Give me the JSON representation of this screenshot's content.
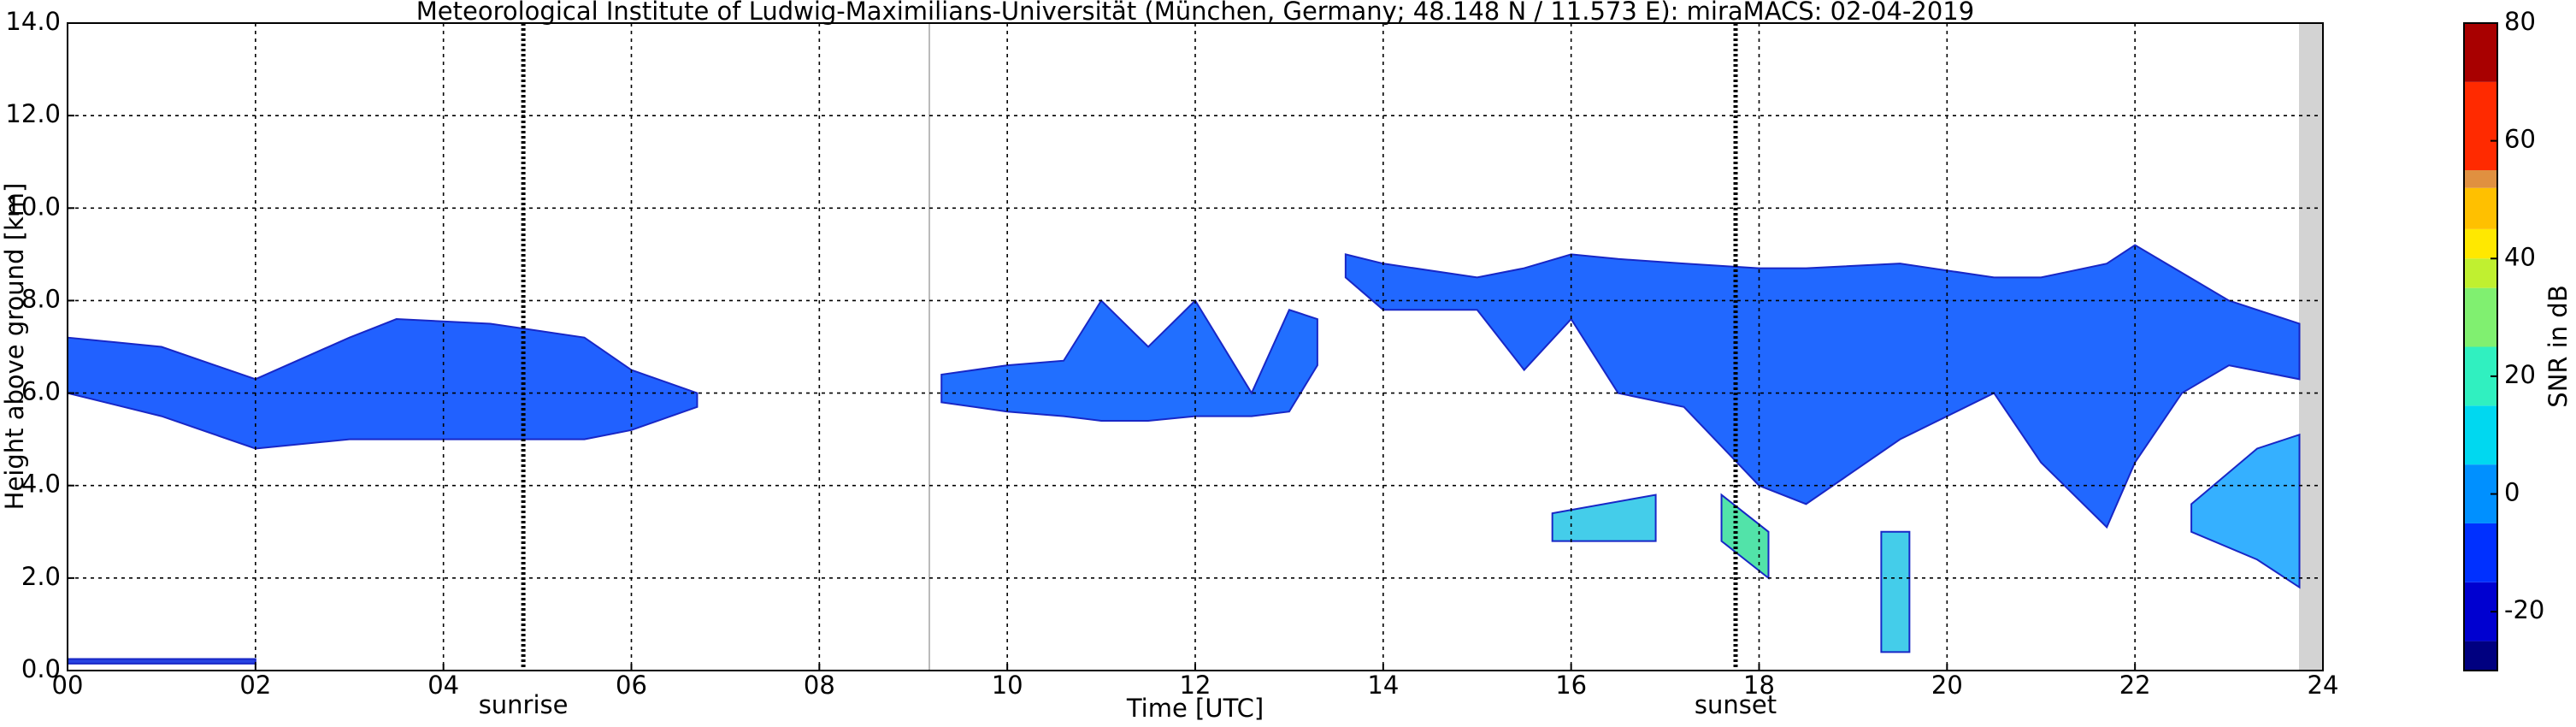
{
  "chart_data": {
    "type": "radar",
    "title": "Meteorological Institute of Ludwig-Maximilians-Universität (München, Germany; 48.148 N / 11.573 E):    miraMACS: 02-04-2019",
    "xlabel": "Time [UTC]",
    "ylabel": "Height above ground [km]",
    "colorbar_label": "SNR in dB",
    "xlim": [
      0,
      24
    ],
    "ylim": [
      0,
      14
    ],
    "clim": [
      -30,
      80
    ],
    "grid": true,
    "xticks": [
      {
        "value": 0,
        "label": "00"
      },
      {
        "value": 2,
        "label": "02"
      },
      {
        "value": 4,
        "label": "04"
      },
      {
        "value": 6,
        "label": "06"
      },
      {
        "value": 8,
        "label": "08"
      },
      {
        "value": 10,
        "label": "10"
      },
      {
        "value": 12,
        "label": "12"
      },
      {
        "value": 14,
        "label": "14"
      },
      {
        "value": 16,
        "label": "16"
      },
      {
        "value": 18,
        "label": "18"
      },
      {
        "value": 20,
        "label": "20"
      },
      {
        "value": 22,
        "label": "22"
      },
      {
        "value": 24,
        "label": "24"
      }
    ],
    "yticks": [
      {
        "value": 0,
        "label": "0.0"
      },
      {
        "value": 2,
        "label": "2.0"
      },
      {
        "value": 4,
        "label": "4.0"
      },
      {
        "value": 6,
        "label": "6.0"
      },
      {
        "value": 8,
        "label": "8.0"
      },
      {
        "value": 10,
        "label": "10.0"
      },
      {
        "value": 12,
        "label": "12.0"
      },
      {
        "value": 14,
        "label": "14.0"
      }
    ],
    "cticks": [
      -20,
      0,
      20,
      40,
      60,
      80
    ],
    "colormap": [
      {
        "from": -30,
        "to": -25,
        "color": "#000080"
      },
      {
        "from": -25,
        "to": -15,
        "color": "#0000d0"
      },
      {
        "from": -15,
        "to": -5,
        "color": "#0030ff"
      },
      {
        "from": -5,
        "to": 5,
        "color": "#0090ff"
      },
      {
        "from": 5,
        "to": 15,
        "color": "#00d8f0"
      },
      {
        "from": 15,
        "to": 25,
        "color": "#30f0c0"
      },
      {
        "from": 25,
        "to": 35,
        "color": "#80f070"
      },
      {
        "from": 35,
        "to": 40,
        "color": "#c0f030"
      },
      {
        "from": 40,
        "to": 45,
        "color": "#ffe800"
      },
      {
        "from": 45,
        "to": 52,
        "color": "#ffc000"
      },
      {
        "from": 52,
        "to": 55,
        "color": "#e09040"
      },
      {
        "from": 55,
        "to": 70,
        "color": "#ff2a00"
      },
      {
        "from": 70,
        "to": 80,
        "color": "#a80000"
      }
    ],
    "annotations": [
      {
        "text": "sunrise",
        "x": 4.85
      },
      {
        "text": "sunset",
        "x": 17.75
      }
    ],
    "echoes": [
      {
        "color": "#0a50ff",
        "x": [
          0,
          1,
          2,
          3,
          3.5,
          4.5,
          5.5,
          6,
          6.7
        ],
        "top": [
          7.2,
          7.0,
          6.3,
          7.2,
          7.6,
          7.5,
          7.2,
          6.5,
          6.0
        ],
        "base": [
          6.0,
          5.5,
          4.8,
          5.0,
          5.0,
          5.0,
          5.0,
          5.2,
          5.7
        ]
      },
      {
        "color": "#0a60ff",
        "x": [
          9.3,
          10,
          10.6,
          11,
          11.5,
          12,
          12.6,
          13,
          13.3
        ],
        "top": [
          6.4,
          6.6,
          6.7,
          8.0,
          7.0,
          8.0,
          6.0,
          7.8,
          7.6
        ],
        "base": [
          5.8,
          5.6,
          5.5,
          5.4,
          5.4,
          5.5,
          5.5,
          5.6,
          6.6
        ]
      },
      {
        "color": "#0a58ff",
        "x": [
          13.6,
          14,
          15,
          15.5,
          16,
          16.5,
          17.2,
          18,
          18.5,
          19.5,
          20.5,
          21,
          21.7,
          22,
          22.5,
          23,
          23.75
        ],
        "top": [
          9.0,
          8.8,
          8.5,
          8.7,
          9.0,
          8.9,
          8.8,
          8.7,
          8.7,
          8.8,
          8.5,
          8.5,
          8.8,
          9.2,
          8.6,
          8.0,
          7.5
        ],
        "base": [
          8.5,
          7.8,
          7.8,
          6.5,
          7.6,
          6.0,
          5.7,
          4.0,
          3.6,
          5.0,
          6.0,
          4.5,
          3.1,
          4.5,
          6.0,
          6.6,
          6.3
        ]
      },
      {
        "color": "#20a8ff",
        "x": [
          22.6,
          23.3,
          23.75
        ],
        "top": [
          3.6,
          4.8,
          5.1
        ],
        "base": [
          3.0,
          2.4,
          1.8
        ]
      },
      {
        "color": "#40e0a0",
        "x": [
          17.6,
          18.1
        ],
        "top": [
          3.8,
          3.0
        ],
        "base": [
          2.8,
          2.0
        ]
      },
      {
        "color": "#30c8e8",
        "x": [
          15.8,
          16.9
        ],
        "top": [
          3.4,
          3.8
        ],
        "base": [
          2.8,
          2.8
        ]
      },
      {
        "color": "#30c8e8",
        "x": [
          19.3,
          19.6
        ],
        "top": [
          3.0,
          3.0
        ],
        "base": [
          0.4,
          0.4
        ]
      },
      {
        "color": "#1030e0",
        "x": [
          0,
          2
        ],
        "top": [
          0.25,
          0.25
        ],
        "base": [
          0.15,
          0.15
        ]
      }
    ]
  }
}
